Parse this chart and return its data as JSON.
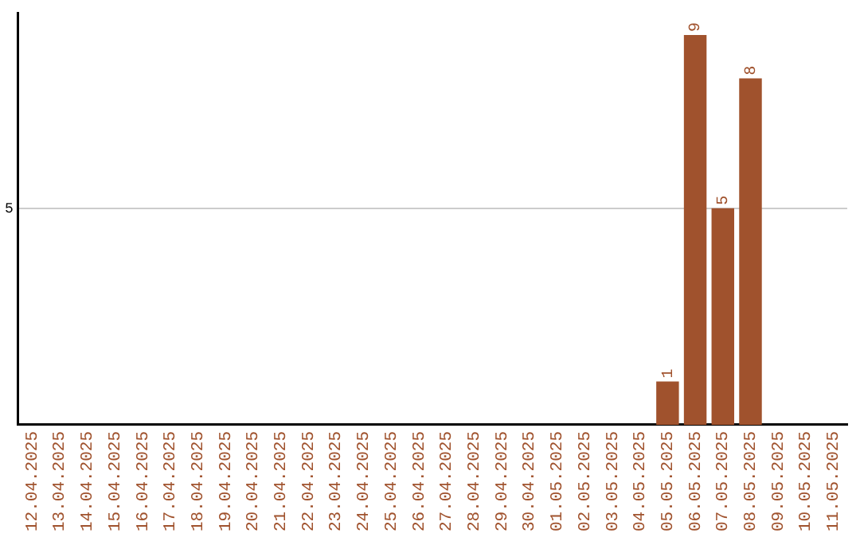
{
  "chart_data": {
    "type": "bar",
    "categories": [
      "12.04.2025",
      "13.04.2025",
      "14.04.2025",
      "15.04.2025",
      "16.04.2025",
      "17.04.2025",
      "18.04.2025",
      "19.04.2025",
      "20.04.2025",
      "21.04.2025",
      "22.04.2025",
      "23.04.2025",
      "24.04.2025",
      "25.04.2025",
      "26.04.2025",
      "27.04.2025",
      "28.04.2025",
      "29.04.2025",
      "30.04.2025",
      "01.05.2025",
      "02.05.2025",
      "03.05.2025",
      "04.05.2025",
      "05.05.2025",
      "06.05.2025",
      "07.05.2025",
      "08.05.2025",
      "09.05.2025",
      "10.05.2025",
      "11.05.2025"
    ],
    "values": [
      null,
      null,
      null,
      null,
      null,
      null,
      null,
      null,
      null,
      null,
      null,
      null,
      null,
      null,
      null,
      null,
      null,
      null,
      null,
      null,
      null,
      null,
      null,
      1,
      9,
      5,
      8,
      null,
      null,
      null
    ],
    "data_labels": true,
    "color": "#a0522d",
    "ylim": [
      0,
      9.5
    ],
    "yticks": [
      5
    ],
    "grid": "y",
    "legend": false
  }
}
